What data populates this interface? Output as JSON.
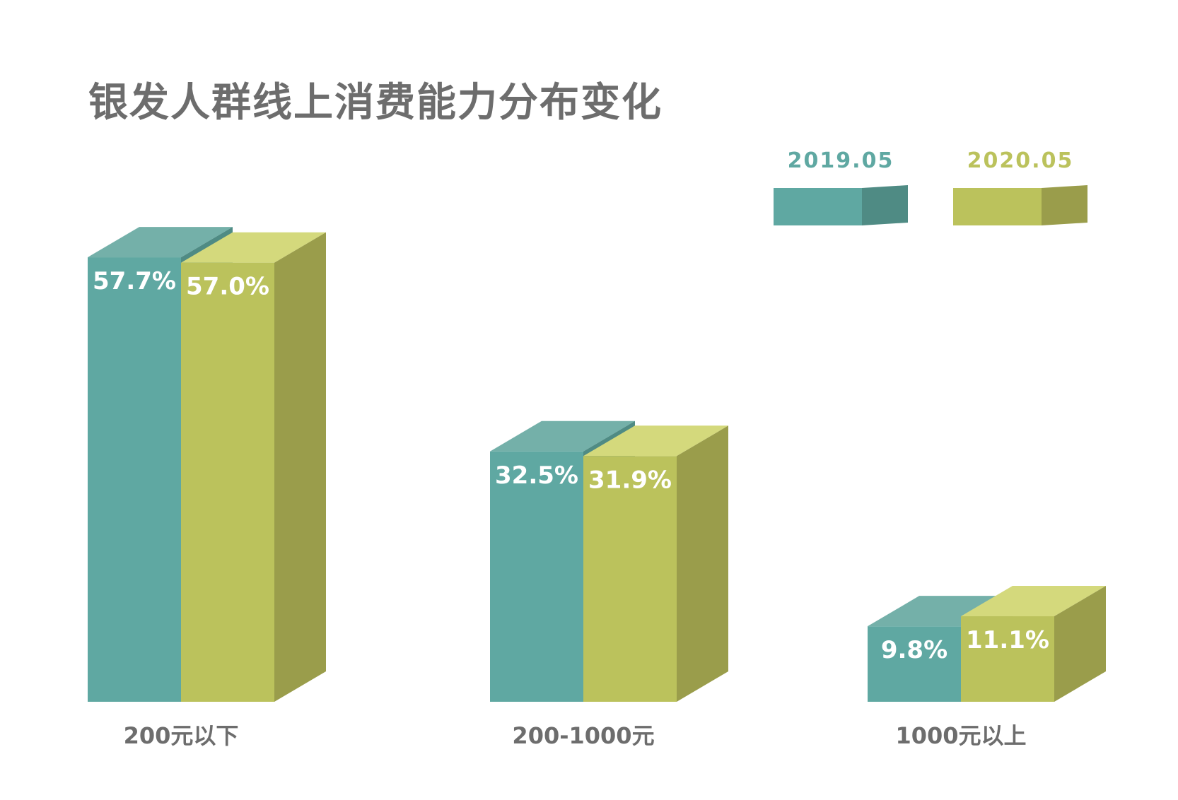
{
  "chart_data": {
    "type": "bar",
    "title": "银发人群线上消费能力分布变化",
    "categories": [
      "200元以下",
      "200-1000元",
      "1000元以上"
    ],
    "series": [
      {
        "name": "2019.05",
        "values": [
          57.7,
          32.5,
          9.8
        ],
        "labels": [
          "57.7%",
          "32.5%",
          "9.8%"
        ],
        "color": "#5fa8a2"
      },
      {
        "name": "2020.05",
        "values": [
          57.0,
          31.9,
          11.1
        ],
        "labels": [
          "57.0%",
          "31.9%",
          "11.1%"
        ],
        "color": "#bbc25c"
      }
    ],
    "ylim": [
      0,
      60
    ],
    "grid": false,
    "legend": "top-right",
    "style": "3d-bars"
  },
  "colors": {
    "teal_front": "#5fa8a2",
    "teal_top": "#74b0a9",
    "teal_side": "#4f8b84",
    "olive_front": "#bbc25c",
    "olive_top": "#d4d97c",
    "olive_side": "#9a9d4b",
    "text_gray": "#6d6d6d"
  }
}
